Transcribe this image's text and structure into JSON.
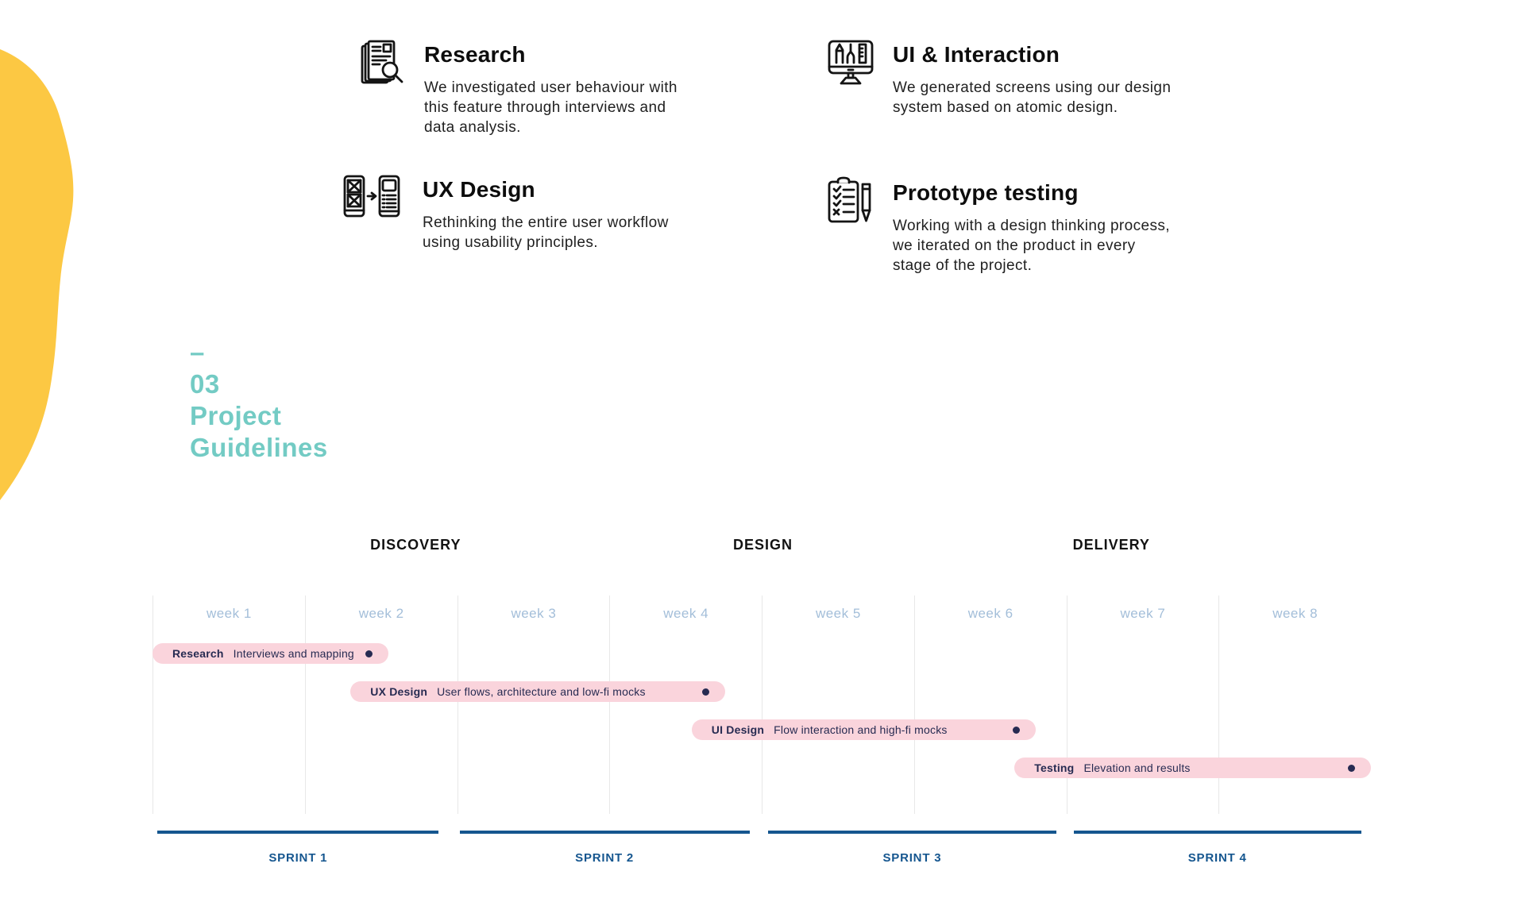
{
  "features": [
    {
      "icon": "documents-magnifier-icon",
      "title": "Research",
      "description": "We investigated user behaviour with\nthis feature through interviews and\ndata analysis."
    },
    {
      "icon": "monitor-design-tools-icon",
      "title": "UI & Interaction",
      "description": "We generated screens using our design\nsystem based on atomic design."
    },
    {
      "icon": "wireframes-arrow-icon",
      "title": "UX Design",
      "description": "Rethinking the entire user workflow\nusing usability principles."
    },
    {
      "icon": "clipboard-checklist-pencil-icon",
      "title": "Prototype testing",
      "description": "Working with a design thinking process,\nwe iterated on the product in every\nstage of the project."
    }
  ],
  "section_heading": {
    "text": "–\n03\nProject\nGuidelines"
  },
  "timeline": {
    "phases": [
      {
        "label": "DISCOVERY",
        "center_pct": 21.6
      },
      {
        "label": "DESIGN",
        "center_pct": 50.1
      },
      {
        "label": "DELIVERY",
        "center_pct": 78.7
      }
    ],
    "weeks": [
      "week 1",
      "week 2",
      "week 3",
      "week 4",
      "week 5",
      "week 6",
      "week 7",
      "week 8"
    ],
    "tasks": [
      {
        "name": "Research",
        "description": "Interviews and mapping",
        "start_week": 0.0,
        "end_week": 1.55
      },
      {
        "name": "UX Design",
        "description": "User flows, architecture and low-fi mocks",
        "start_week": 1.3,
        "end_week": 3.76
      },
      {
        "name": "UI Design",
        "description": "Flow interaction and high-fi mocks",
        "start_week": 3.54,
        "end_week": 5.8
      },
      {
        "name": "Testing",
        "description": "Elevation and results",
        "start_week": 5.66,
        "end_week": 8.0
      }
    ],
    "sprints": [
      {
        "label": "SPRINT 1",
        "start_pct": 0.4,
        "end_pct": 23.5
      },
      {
        "label": "SPRINT 2",
        "start_pct": 25.2,
        "end_pct": 49.0
      },
      {
        "label": "SPRINT 3",
        "start_pct": 50.5,
        "end_pct": 74.2
      },
      {
        "label": "SPRINT 4",
        "start_pct": 75.6,
        "end_pct": 99.2
      }
    ]
  },
  "colors": {
    "accent_teal": "#73cbc4",
    "blob_yellow": "#fcc843",
    "bar_pink": "#fad4dc",
    "bar_text_navy": "#272b52",
    "sprint_blue": "#15568f",
    "week_label_blue": "#a3bed9",
    "grid_line": "#e8e8e8"
  }
}
